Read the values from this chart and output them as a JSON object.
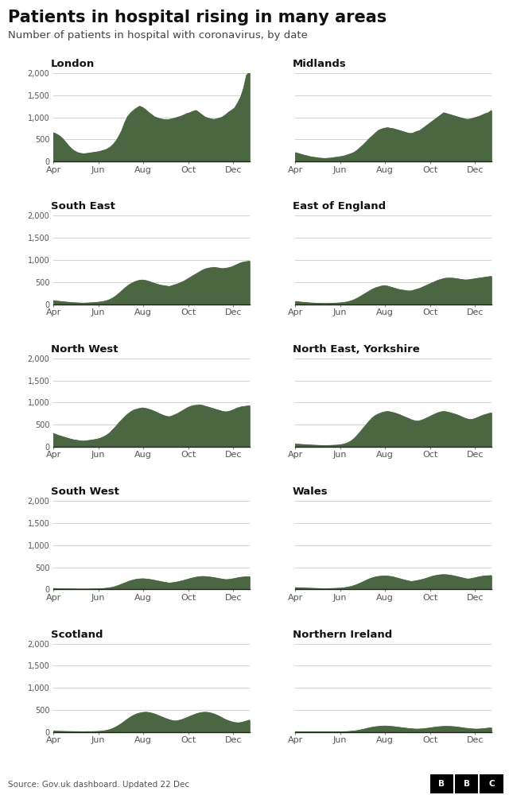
{
  "title": "Patients in hospital rising in many areas",
  "subtitle": "Number of patients in hospital with coronavirus, by date",
  "source": "Source: Gov.uk dashboard. Updated 22 Dec",
  "fill_color": "#4a6741",
  "background_color": "#ffffff",
  "x_tick_labels": [
    "Apr",
    "Jun",
    "Aug",
    "Oct",
    "Dec"
  ],
  "y_ticks": [
    0,
    500,
    1000,
    1500,
    2000
  ],
  "y_tick_labels": [
    "0",
    "500",
    "1,000",
    "1,500",
    "2,000"
  ],
  "london": [
    650,
    620,
    580,
    520,
    440,
    360,
    290,
    240,
    205,
    185,
    175,
    180,
    190,
    200,
    210,
    220,
    235,
    255,
    280,
    320,
    380,
    460,
    570,
    700,
    880,
    1020,
    1100,
    1160,
    1210,
    1250,
    1220,
    1170,
    1110,
    1060,
    1010,
    985,
    965,
    950,
    942,
    952,
    965,
    985,
    1005,
    1025,
    1055,
    1085,
    1105,
    1135,
    1155,
    1105,
    1055,
    1005,
    982,
    962,
    952,
    965,
    985,
    1010,
    1060,
    1115,
    1160,
    1210,
    1320,
    1450,
    1650,
    1950,
    2020
  ],
  "midlands": [
    200,
    182,
    162,
    142,
    128,
    108,
    98,
    88,
    78,
    72,
    68,
    73,
    78,
    88,
    98,
    108,
    118,
    138,
    160,
    182,
    214,
    264,
    324,
    384,
    454,
    524,
    582,
    644,
    704,
    732,
    752,
    764,
    752,
    742,
    722,
    702,
    682,
    662,
    642,
    632,
    652,
    682,
    702,
    752,
    802,
    852,
    902,
    952,
    1002,
    1052,
    1102,
    1082,
    1062,
    1042,
    1022,
    1002,
    982,
    962,
    952,
    962,
    982,
    1002,
    1022,
    1052,
    1082,
    1102,
    1152
  ],
  "south_east": [
    80,
    70,
    62,
    55,
    48,
    42,
    37,
    32,
    28,
    25,
    22,
    25,
    28,
    32,
    37,
    42,
    50,
    62,
    80,
    105,
    140,
    185,
    240,
    300,
    360,
    415,
    460,
    495,
    520,
    540,
    545,
    535,
    515,
    492,
    470,
    448,
    428,
    418,
    408,
    398,
    418,
    440,
    462,
    492,
    522,
    562,
    602,
    645,
    682,
    722,
    762,
    792,
    812,
    822,
    832,
    822,
    812,
    802,
    812,
    822,
    842,
    872,
    902,
    932,
    952,
    962,
    972
  ],
  "east_of_england": [
    60,
    52,
    45,
    38,
    34,
    28,
    24,
    21,
    18,
    16,
    14,
    16,
    18,
    21,
    24,
    28,
    34,
    44,
    58,
    78,
    105,
    138,
    178,
    218,
    258,
    298,
    338,
    368,
    388,
    408,
    418,
    408,
    388,
    368,
    348,
    328,
    318,
    308,
    298,
    298,
    318,
    338,
    358,
    388,
    418,
    448,
    478,
    508,
    538,
    558,
    578,
    588,
    588,
    588,
    578,
    568,
    558,
    548,
    548,
    558,
    568,
    578,
    588,
    598,
    608,
    618,
    628
  ],
  "north_west": [
    300,
    272,
    250,
    228,
    208,
    188,
    168,
    153,
    143,
    133,
    128,
    133,
    143,
    153,
    163,
    178,
    198,
    228,
    268,
    318,
    388,
    458,
    538,
    608,
    678,
    738,
    788,
    828,
    848,
    868,
    878,
    868,
    848,
    828,
    798,
    768,
    738,
    708,
    688,
    678,
    698,
    728,
    758,
    798,
    838,
    878,
    908,
    928,
    938,
    948,
    938,
    918,
    898,
    878,
    858,
    838,
    818,
    798,
    788,
    798,
    818,
    848,
    878,
    898,
    908,
    918,
    928
  ],
  "north_east_yorks": [
    60,
    56,
    52,
    48,
    44,
    40,
    36,
    33,
    30,
    28,
    26,
    28,
    30,
    33,
    36,
    44,
    54,
    72,
    100,
    140,
    198,
    268,
    348,
    428,
    508,
    588,
    658,
    708,
    742,
    768,
    788,
    798,
    788,
    772,
    752,
    728,
    700,
    670,
    642,
    612,
    590,
    578,
    590,
    612,
    642,
    672,
    708,
    738,
    768,
    788,
    798,
    788,
    772,
    752,
    732,
    708,
    678,
    648,
    626,
    614,
    626,
    648,
    678,
    708,
    728,
    748,
    768
  ],
  "south_west": [
    20,
    18,
    16,
    15,
    13,
    12,
    11,
    10,
    9,
    8,
    8,
    8,
    9,
    10,
    11,
    13,
    16,
    20,
    27,
    36,
    50,
    68,
    92,
    118,
    145,
    172,
    195,
    215,
    228,
    236,
    240,
    236,
    228,
    218,
    205,
    192,
    178,
    165,
    153,
    142,
    150,
    160,
    172,
    188,
    205,
    224,
    244,
    260,
    275,
    286,
    292,
    290,
    284,
    276,
    266,
    254,
    242,
    230,
    220,
    224,
    234,
    246,
    260,
    272,
    280,
    284,
    288
  ],
  "wales": [
    40,
    36,
    33,
    30,
    28,
    25,
    23,
    21,
    19,
    17,
    15,
    17,
    19,
    21,
    23,
    27,
    33,
    42,
    54,
    70,
    90,
    116,
    145,
    175,
    208,
    238,
    262,
    280,
    292,
    300,
    304,
    300,
    292,
    280,
    262,
    244,
    226,
    208,
    192,
    178,
    186,
    198,
    212,
    228,
    248,
    270,
    292,
    308,
    322,
    330,
    334,
    330,
    322,
    310,
    296,
    280,
    264,
    248,
    234,
    240,
    254,
    270,
    284,
    296,
    304,
    308,
    312
  ],
  "scotland": [
    20,
    18,
    16,
    14,
    12,
    11,
    10,
    9,
    8,
    7,
    6,
    7,
    8,
    9,
    10,
    13,
    18,
    26,
    38,
    56,
    80,
    112,
    152,
    196,
    246,
    295,
    340,
    378,
    408,
    428,
    442,
    448,
    442,
    428,
    408,
    382,
    354,
    326,
    300,
    276,
    258,
    248,
    258,
    276,
    300,
    326,
    356,
    382,
    408,
    428,
    442,
    448,
    442,
    428,
    408,
    382,
    348,
    312,
    278,
    252,
    230,
    214,
    206,
    212,
    228,
    248,
    268
  ],
  "northern_ireland": [
    8,
    7,
    6,
    6,
    5,
    5,
    4,
    4,
    4,
    3,
    3,
    3,
    4,
    4,
    4,
    5,
    6,
    8,
    12,
    17,
    24,
    34,
    47,
    62,
    78,
    94,
    108,
    118,
    126,
    132,
    135,
    133,
    128,
    122,
    114,
    105,
    96,
    88,
    80,
    73,
    68,
    65,
    68,
    73,
    80,
    88,
    98,
    108,
    116,
    122,
    126,
    128,
    126,
    122,
    116,
    108,
    98,
    88,
    80,
    73,
    68,
    65,
    68,
    73,
    80,
    88,
    95
  ]
}
